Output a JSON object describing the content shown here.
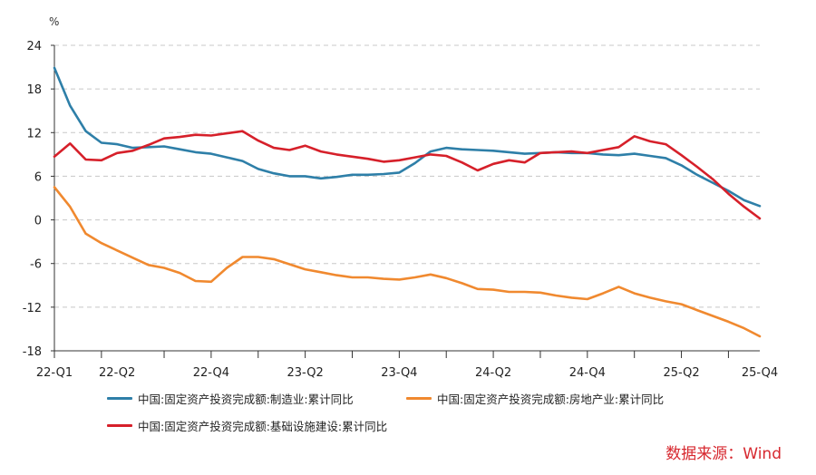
{
  "chart_data": {
    "type": "line",
    "unit_label": "%",
    "ylim": [
      -18,
      24
    ],
    "yticks": [
      24,
      18,
      12,
      6,
      0,
      -6,
      -12,
      -18
    ],
    "x_start": 0,
    "x_end": 45,
    "category_labels": [
      {
        "label": "22-Q1",
        "x": 0
      },
      {
        "label": "22-Q2",
        "x": 4
      },
      {
        "label": "22-Q4",
        "x": 10
      },
      {
        "label": "23-Q2",
        "x": 16
      },
      {
        "label": "23-Q4",
        "x": 22
      },
      {
        "label": "24-Q2",
        "x": 28
      },
      {
        "label": "24-Q4",
        "x": 34
      },
      {
        "label": "25-Q2",
        "x": 40
      },
      {
        "label": "25-Q4",
        "x": 45
      }
    ],
    "x_major_ticks": [
      0,
      3,
      7,
      10,
      13,
      16,
      19,
      22,
      25,
      28,
      31,
      34,
      37,
      40,
      43
    ],
    "series": [
      {
        "name": "中国:固定资产投资完成额:制造业:累计同比",
        "color": "#2e7fa8",
        "points": [
          [
            0,
            20.9
          ],
          [
            1,
            15.7
          ],
          [
            2,
            12.2
          ],
          [
            3,
            10.6
          ],
          [
            4,
            10.4
          ],
          [
            5,
            9.9
          ],
          [
            6,
            10.0
          ],
          [
            7,
            10.1
          ],
          [
            8,
            9.7
          ],
          [
            9,
            9.3
          ],
          [
            10,
            9.1
          ],
          [
            11,
            8.6
          ],
          [
            12,
            8.1
          ],
          [
            13,
            7.0
          ],
          [
            14,
            6.4
          ],
          [
            15,
            6.0
          ],
          [
            16,
            6.0
          ],
          [
            17,
            5.7
          ],
          [
            18,
            5.9
          ],
          [
            19,
            6.2
          ],
          [
            20,
            6.2
          ],
          [
            21,
            6.3
          ],
          [
            22,
            6.5
          ],
          [
            23,
            7.8
          ],
          [
            24,
            9.4
          ],
          [
            25,
            9.9
          ],
          [
            26,
            9.7
          ],
          [
            27,
            9.6
          ],
          [
            28,
            9.5
          ],
          [
            29,
            9.3
          ],
          [
            30,
            9.1
          ],
          [
            31,
            9.2
          ],
          [
            32,
            9.3
          ],
          [
            33,
            9.2
          ],
          [
            34,
            9.2
          ],
          [
            35,
            9.0
          ],
          [
            36,
            8.9
          ],
          [
            37,
            9.1
          ],
          [
            38,
            8.8
          ],
          [
            39,
            8.5
          ],
          [
            40,
            7.5
          ],
          [
            41,
            6.2
          ],
          [
            42,
            5.1
          ],
          [
            43,
            4.0
          ],
          [
            44,
            2.7
          ],
          [
            45,
            1.9
          ]
        ]
      },
      {
        "name": "中国:固定资产投资完成额:房地产业:累计同比",
        "color": "#f0892f",
        "points": [
          [
            0,
            4.5
          ],
          [
            1,
            1.8
          ],
          [
            2,
            -1.9
          ],
          [
            3,
            -3.2
          ],
          [
            4,
            -4.2
          ],
          [
            5,
            -5.2
          ],
          [
            6,
            -6.2
          ],
          [
            7,
            -6.6
          ],
          [
            8,
            -7.3
          ],
          [
            9,
            -8.4
          ],
          [
            10,
            -8.5
          ],
          [
            11,
            -6.6
          ],
          [
            12,
            -5.1
          ],
          [
            13,
            -5.1
          ],
          [
            14,
            -5.4
          ],
          [
            15,
            -6.1
          ],
          [
            16,
            -6.8
          ],
          [
            17,
            -7.2
          ],
          [
            18,
            -7.6
          ],
          [
            19,
            -7.9
          ],
          [
            20,
            -7.9
          ],
          [
            21,
            -8.1
          ],
          [
            22,
            -8.2
          ],
          [
            23,
            -7.9
          ],
          [
            24,
            -7.5
          ],
          [
            25,
            -8.0
          ],
          [
            26,
            -8.7
          ],
          [
            27,
            -9.5
          ],
          [
            28,
            -9.6
          ],
          [
            29,
            -9.9
          ],
          [
            30,
            -9.9
          ],
          [
            31,
            -10.0
          ],
          [
            32,
            -10.4
          ],
          [
            33,
            -10.7
          ],
          [
            34,
            -10.9
          ],
          [
            35,
            -10.1
          ],
          [
            36,
            -9.2
          ],
          [
            37,
            -10.1
          ],
          [
            38,
            -10.7
          ],
          [
            39,
            -11.2
          ],
          [
            40,
            -11.6
          ],
          [
            41,
            -12.4
          ],
          [
            42,
            -13.2
          ],
          [
            43,
            -14.0
          ],
          [
            44,
            -14.9
          ],
          [
            45,
            -16.0
          ]
        ]
      },
      {
        "name": "中国:固定资产投资完成额:基础设施建设:累计同比",
        "color": "#d6202a",
        "points": [
          [
            0,
            8.7
          ],
          [
            1,
            10.5
          ],
          [
            2,
            8.3
          ],
          [
            3,
            8.2
          ],
          [
            4,
            9.2
          ],
          [
            5,
            9.5
          ],
          [
            6,
            10.3
          ],
          [
            7,
            11.2
          ],
          [
            8,
            11.4
          ],
          [
            9,
            11.7
          ],
          [
            10,
            11.6
          ],
          [
            11,
            11.9
          ],
          [
            12,
            12.2
          ],
          [
            13,
            10.9
          ],
          [
            14,
            9.9
          ],
          [
            15,
            9.6
          ],
          [
            16,
            10.2
          ],
          [
            17,
            9.4
          ],
          [
            18,
            9.0
          ],
          [
            19,
            8.7
          ],
          [
            20,
            8.4
          ],
          [
            21,
            8.0
          ],
          [
            22,
            8.2
          ],
          [
            23,
            8.6
          ],
          [
            24,
            9.0
          ],
          [
            25,
            8.8
          ],
          [
            26,
            7.9
          ],
          [
            27,
            6.8
          ],
          [
            28,
            7.7
          ],
          [
            29,
            8.2
          ],
          [
            30,
            7.9
          ],
          [
            31,
            9.2
          ],
          [
            32,
            9.3
          ],
          [
            33,
            9.4
          ],
          [
            34,
            9.2
          ],
          [
            35,
            9.6
          ],
          [
            36,
            10.0
          ],
          [
            37,
            11.5
          ],
          [
            38,
            10.8
          ],
          [
            39,
            10.4
          ],
          [
            40,
            8.9
          ],
          [
            41,
            7.3
          ],
          [
            42,
            5.6
          ],
          [
            43,
            3.6
          ],
          [
            44,
            1.8
          ],
          [
            45,
            0.2
          ]
        ]
      }
    ]
  },
  "legend": {
    "items": [
      {
        "label": "中国:固定资产投资完成额:制造业:累计同比",
        "color": "#2e7fa8"
      },
      {
        "label": "中国:固定资产投资完成额:房地产业:累计同比",
        "color": "#f0892f"
      },
      {
        "label": "中国:固定资产投资完成额:基础设施建设:累计同比",
        "color": "#d6202a"
      }
    ]
  },
  "source": "数据来源：Wind"
}
